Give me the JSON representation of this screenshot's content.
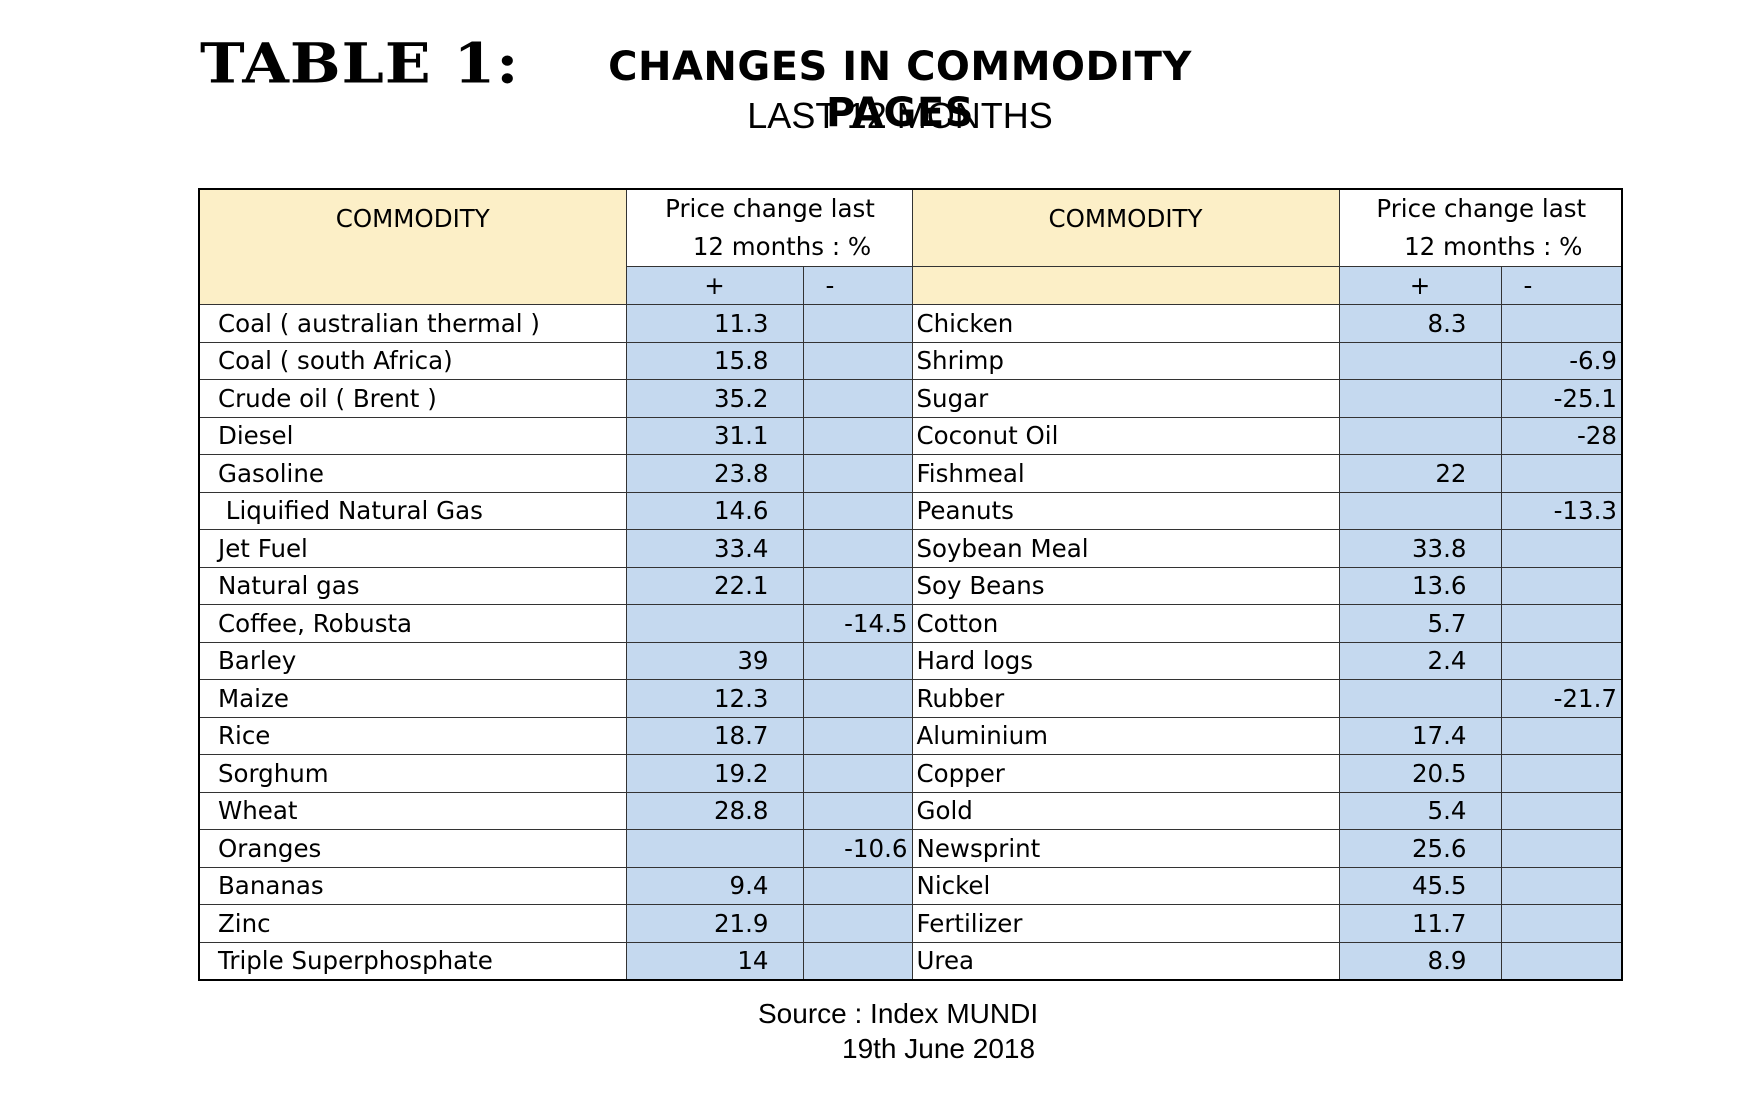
{
  "heading": {
    "label": "TABLE 1:",
    "title": "CHANGES IN COMMODITY PAGES",
    "subtitle": "LAST 12 MONTHS"
  },
  "table": {
    "col_commodity": "COMMODITY",
    "col_price_line1": "Price change last",
    "col_price_line2_left": "12 months :  %",
    "col_price_line2_right": "12 months : %",
    "plus": "+",
    "minus": "-",
    "rows": [
      {
        "left_name": "Coal ( australian thermal )",
        "left_plus": "11.3",
        "left_minus": "",
        "right_name": "Chicken",
        "right_plus": "8.3",
        "right_minus": ""
      },
      {
        "left_name": "Coal ( south Africa)",
        "left_plus": "15.8",
        "left_minus": "",
        "right_name": "Shrimp",
        "right_plus": "",
        "right_minus": "-6.9"
      },
      {
        "left_name": "Crude oil ( Brent )",
        "left_plus": "35.2",
        "left_minus": "",
        "right_name": "Sugar",
        "right_plus": "",
        "right_minus": "-25.1"
      },
      {
        "left_name": "Diesel",
        "left_plus": "31.1",
        "left_minus": "",
        "right_name": "Coconut Oil",
        "right_plus": "",
        "right_minus": "-28"
      },
      {
        "left_name": "Gasoline",
        "left_plus": "23.8",
        "left_minus": "",
        "right_name": "Fishmeal",
        "right_plus": "22",
        "right_minus": ""
      },
      {
        "left_name": " Liquified Natural Gas",
        "left_plus": "14.6",
        "left_minus": "",
        "right_name": "Peanuts",
        "right_plus": "",
        "right_minus": "-13.3"
      },
      {
        "left_name": "Jet Fuel",
        "left_plus": "33.4",
        "left_minus": "",
        "right_name": "Soybean Meal",
        "right_plus": "33.8",
        "right_minus": ""
      },
      {
        "left_name": "Natural gas",
        "left_plus": "22.1",
        "left_minus": "",
        "right_name": "Soy Beans",
        "right_plus": "13.6",
        "right_minus": ""
      },
      {
        "left_name": "Coffee, Robusta",
        "left_plus": "",
        "left_minus": "-14.5",
        "right_name": "Cotton",
        "right_plus": "5.7",
        "right_minus": ""
      },
      {
        "left_name": "Barley",
        "left_plus": "39",
        "left_minus": "",
        "right_name": "Hard logs",
        "right_plus": "2.4",
        "right_minus": ""
      },
      {
        "left_name": "Maize",
        "left_plus": "12.3",
        "left_minus": "",
        "right_name": "Rubber",
        "right_plus": "",
        "right_minus": "-21.7"
      },
      {
        "left_name": "Rice",
        "left_plus": "18.7",
        "left_minus": "",
        "right_name": "Aluminium",
        "right_plus": "17.4",
        "right_minus": ""
      },
      {
        "left_name": "Sorghum",
        "left_plus": "19.2",
        "left_minus": "",
        "right_name": "Copper",
        "right_plus": "20.5",
        "right_minus": ""
      },
      {
        "left_name": "Wheat",
        "left_plus": "28.8",
        "left_minus": "",
        "right_name": "Gold",
        "right_plus": "5.4",
        "right_minus": ""
      },
      {
        "left_name": "Oranges",
        "left_plus": "",
        "left_minus": "-10.6",
        "right_name": "Newsprint",
        "right_plus": "25.6",
        "right_minus": ""
      },
      {
        "left_name": "Bananas",
        "left_plus": "9.4",
        "left_minus": "",
        "right_name": "Nickel",
        "right_plus": "45.5",
        "right_minus": ""
      },
      {
        "left_name": "Zinc",
        "left_plus": "21.9",
        "left_minus": "",
        "right_name": "Fertilizer",
        "right_plus": "11.7",
        "right_minus": ""
      },
      {
        "left_name": "Triple Superphosphate",
        "left_plus": "14",
        "left_minus": "",
        "right_name": "Urea",
        "right_plus": "8.9",
        "right_minus": ""
      }
    ]
  },
  "footer": {
    "source": "Source : Index MUNDI",
    "date": "19th June 2018"
  },
  "colors": {
    "header_fill": "#fcefc7",
    "value_fill": "#c5d9ef"
  }
}
